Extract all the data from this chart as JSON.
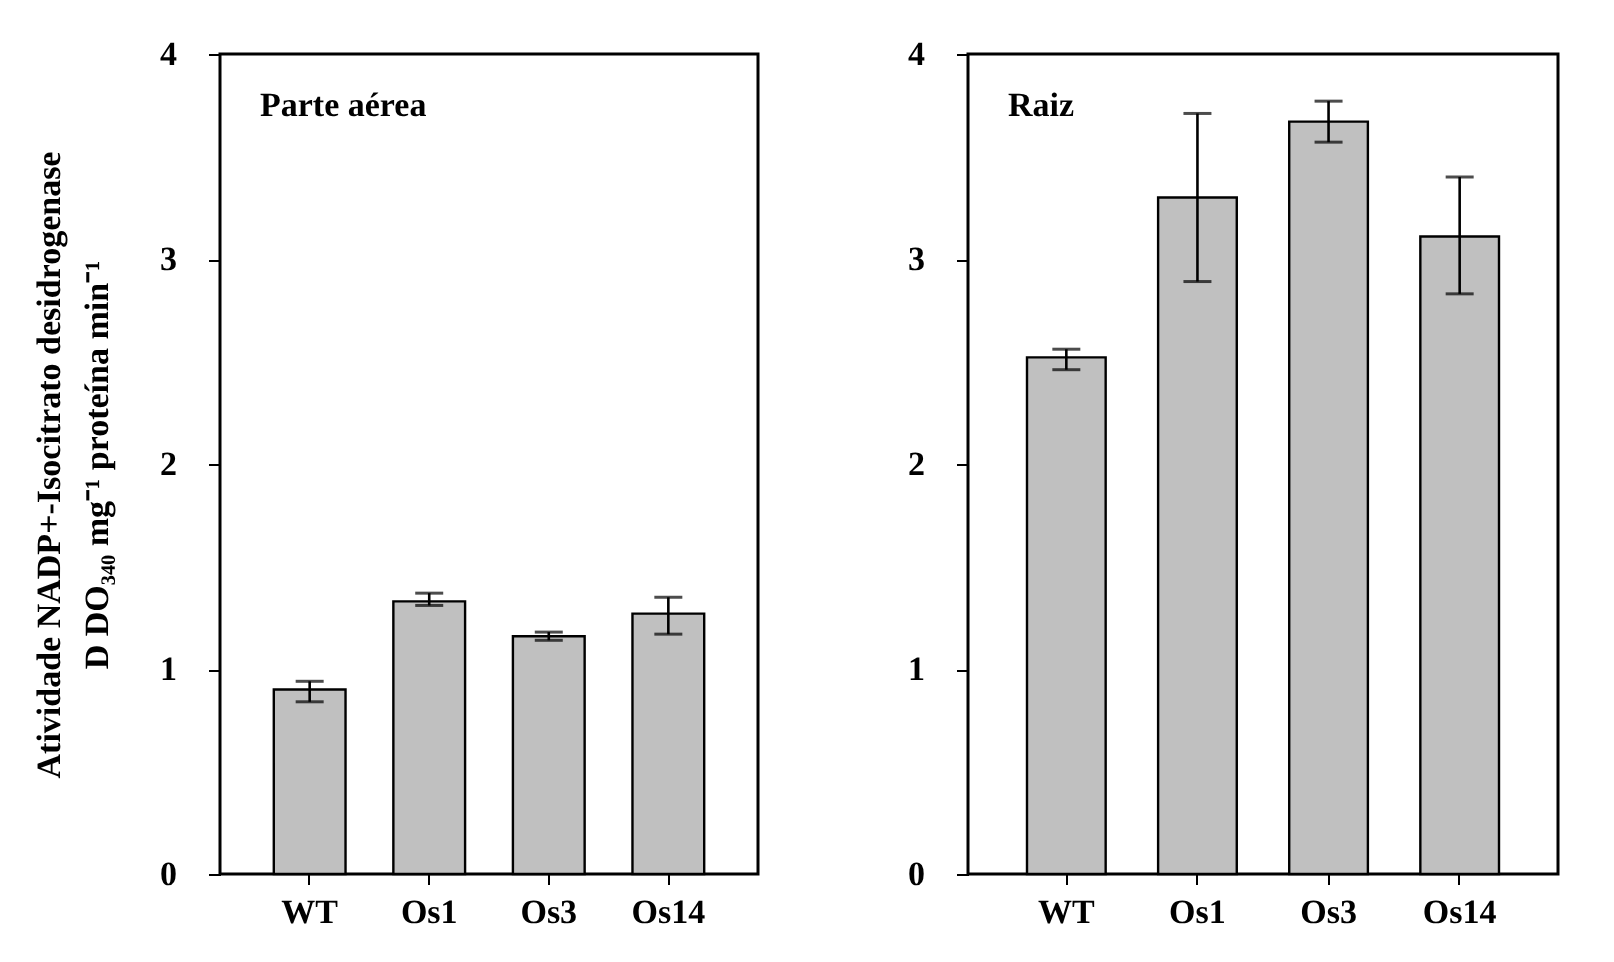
{
  "chart_data": [
    {
      "type": "bar",
      "title": "Parte aérea",
      "ylabel": "Atividade NADP+-Isocitrato desidrogenase\nD DO₃₄₀ mg⁻¹ proteína min⁻¹",
      "categories": [
        "WT",
        "Os1",
        "Os3",
        "Os14"
      ],
      "values": [
        0.9,
        1.33,
        1.16,
        1.27
      ],
      "errors": [
        [
          0.84,
          0.94
        ],
        [
          1.31,
          1.37
        ],
        [
          1.14,
          1.18
        ],
        [
          1.17,
          1.35
        ]
      ],
      "color": "#c0c0c0",
      "ylim": [
        0,
        4
      ],
      "yticks": [
        0,
        1,
        2,
        3,
        4
      ]
    },
    {
      "type": "bar",
      "title": "Raiz",
      "categories": [
        "WT",
        "Os1",
        "Os3",
        "Os14"
      ],
      "values": [
        2.52,
        3.3,
        3.67,
        3.11
      ],
      "errors": [
        [
          2.46,
          2.56
        ],
        [
          2.89,
          3.71
        ],
        [
          3.57,
          3.77
        ],
        [
          2.83,
          3.4
        ]
      ],
      "color": "#c0c0c0",
      "ylim": [
        0,
        4
      ],
      "yticks": [
        0,
        1,
        2,
        3,
        4
      ]
    }
  ]
}
